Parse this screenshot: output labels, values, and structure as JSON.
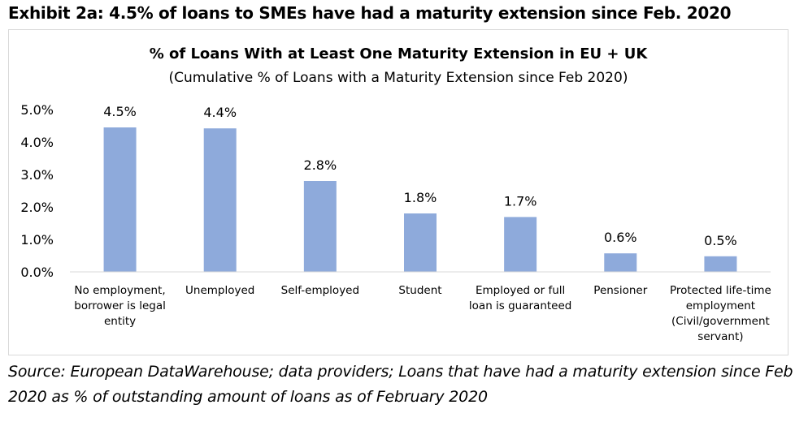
{
  "exhibit_title": "Exhibit 2a: 4.5% of loans to SMEs have had a maturity extension since Feb. 2020",
  "source_note": "Source: European DataWarehouse; data providers; Loans that have had a maturity extension since Feb 2020 as % of outstanding amount of loans as of February 2020",
  "colors": {
    "bar": "#8eaadb",
    "axis": "#d9d9d9"
  },
  "chart_data": {
    "type": "bar",
    "title": "% of Loans With at Least One Maturity Extension in EU + UK",
    "subtitle": "(Cumulative % of Loans with a Maturity Extension since Feb 2020)",
    "xlabel": "",
    "ylabel": "",
    "ylim": [
      0,
      5
    ],
    "yticks": [
      "0.0%",
      "1.0%",
      "2.0%",
      "3.0%",
      "4.0%",
      "5.0%"
    ],
    "grid": false,
    "categories": [
      [
        "No employment,",
        "borrower is legal",
        "entity"
      ],
      [
        "Unemployed"
      ],
      [
        "Self-employed"
      ],
      [
        "Student"
      ],
      [
        "Employed or full",
        "loan is guaranteed"
      ],
      [
        "Pensioner"
      ],
      [
        "Protected life-time",
        "employment",
        "(Civil/government",
        "servant)"
      ]
    ],
    "values": [
      4.45,
      4.42,
      2.8,
      1.8,
      1.69,
      0.57,
      0.48
    ],
    "data_labels": [
      "4.5%",
      "4.4%",
      "2.8%",
      "1.8%",
      "1.7%",
      "0.6%",
      "0.5%"
    ]
  }
}
